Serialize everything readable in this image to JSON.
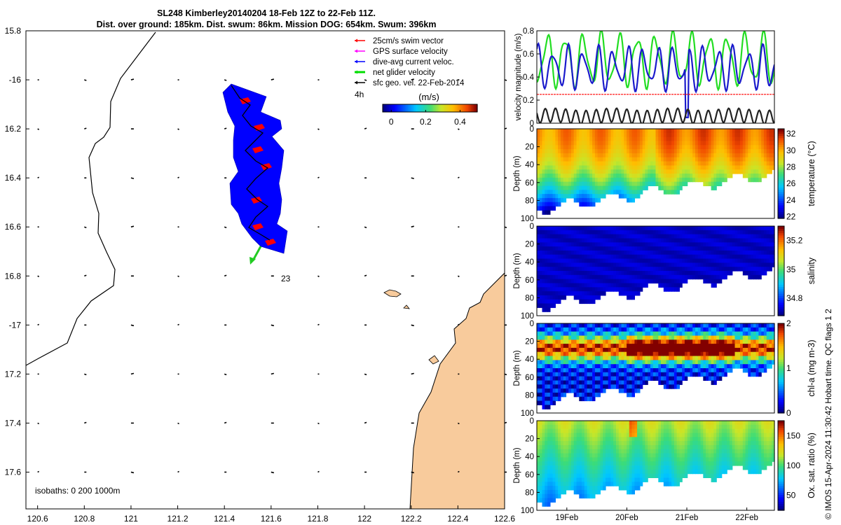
{
  "title_line1": "SL248 Kimberley20140204 18-Feb 12Z to 22-Feb 11Z.",
  "title_line2": "Dist. over ground: 185km. Dist. swum: 86km. Mission DOG: 654km. Swum: 396km",
  "footer": "© IMOS 15-Apr-2024 11:30:42 Hobart time. QC flags 1  2",
  "map": {
    "lon_ticks": [
      "120.6",
      "120.8",
      "121",
      "121.2",
      "121.4",
      "121.6",
      "121.8",
      "122",
      "122.2",
      "122.4",
      "122.6"
    ],
    "lat_ticks": [
      "15.8",
      "-16",
      "16.2",
      "16.4",
      "16.6",
      "16.8",
      "-17",
      "17.2",
      "17.4",
      "17.6"
    ],
    "lon_range": [
      120.55,
      122.6
    ],
    "lat_range": [
      -15.8,
      -17.75
    ],
    "legend": [
      {
        "label": "25cm/s swim vector",
        "color": "#ff0000"
      },
      {
        "label": "GPS surface velocity",
        "color": "#ff00ff"
      },
      {
        "label": "dive-avg current veloc.",
        "color": "#0000ff"
      },
      {
        "label": "net glider velocity",
        "color": "#00dd00"
      },
      {
        "label": "sfc geo. vel. 22-Feb-2014",
        "color": "#000000"
      }
    ],
    "hour_label": "4h",
    "colorbar_unit": "(m/s)",
    "colorbar_ticks": [
      "0",
      "0.2",
      "0.4"
    ],
    "colorbar_range": [
      -0.05,
      0.5
    ],
    "isobaths_label": "isobaths: 0   200  1000m",
    "annotation_23": "23",
    "land_color": "#f8cb9c"
  },
  "chart_data": [
    {
      "type": "line",
      "title": "",
      "ylabel": "velocity magnitude (m/s)",
      "ylim": [
        0,
        0.8
      ],
      "yticks": [
        "0",
        "0.2",
        "0.4",
        "0.6",
        "0.8"
      ],
      "x_range_days": [
        18.5,
        22.46
      ],
      "series": [
        {
          "name": "net glider velocity",
          "color": "#22dd22",
          "mean": 0.55,
          "amp": 0.2,
          "period": 0.3
        },
        {
          "name": "dive-avg current veloc.",
          "color": "#1a1acc",
          "mean": 0.48,
          "amp": 0.15,
          "period": 0.25
        },
        {
          "name": "25cm/s swim vector",
          "color": "#ff0000",
          "mean": 0.25,
          "amp": 0.0,
          "period": 1
        },
        {
          "name": "sfc geo. vel.",
          "color": "#222222",
          "mean": 0.06,
          "amp": 0.01,
          "period": 1
        }
      ]
    },
    {
      "type": "heatmap",
      "variable": "temperature",
      "label": "temperature (°C)",
      "ylabel": "Depth (m)",
      "ylim": [
        0,
        100
      ],
      "yticks": [
        "0",
        "20",
        "40",
        "60",
        "80",
        "100"
      ],
      "cbar_ticks": [
        "22",
        "24",
        "26",
        "28",
        "30",
        "32"
      ],
      "cbar_range": [
        21.8,
        32.6
      ]
    },
    {
      "type": "heatmap",
      "variable": "salinity",
      "label": "salinity",
      "ylabel": "Depth (m)",
      "ylim": [
        0,
        100
      ],
      "yticks": [
        "0",
        "20",
        "40",
        "60",
        "80",
        "100"
      ],
      "cbar_ticks": [
        "34.8",
        "35",
        "35.2"
      ],
      "cbar_range": [
        34.68,
        35.3
      ]
    },
    {
      "type": "heatmap",
      "variable": "chl-a",
      "label": "chl-a (mg m-3)",
      "ylabel": "Depth (m)",
      "ylim": [
        0,
        100
      ],
      "yticks": [
        "0",
        "20",
        "40",
        "60",
        "80",
        "100"
      ],
      "cbar_ticks": [
        "0",
        "1",
        "2"
      ],
      "cbar_range": [
        0,
        2
      ]
    },
    {
      "type": "heatmap",
      "variable": "oxygen",
      "label": "Ox. sat. ratio (%)",
      "ylabel": "Depth (m)",
      "ylim": [
        0,
        100
      ],
      "yticks": [
        "0",
        "20",
        "40",
        "60",
        "80",
        "100"
      ],
      "cbar_ticks": [
        "50",
        "100",
        "150"
      ],
      "cbar_range": [
        25,
        175
      ],
      "xticks": [
        "19Feb",
        "20Feb",
        "21Feb",
        "22Feb"
      ],
      "xtick_days": [
        19,
        20,
        21,
        22
      ]
    }
  ]
}
